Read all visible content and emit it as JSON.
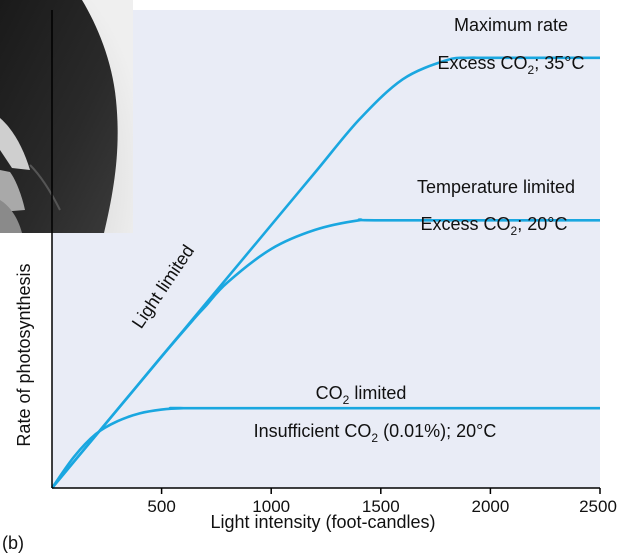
{
  "figure": {
    "panel_label": "(b)",
    "photo": "portrait-photo"
  },
  "colors": {
    "plot_background": "#e9ecf6",
    "curve": "#1aa7e0",
    "axis": "#000000"
  },
  "chart_data": {
    "type": "line",
    "xlabel": "Light intensity (foot-candles)",
    "ylabel": "Rate of photosynthesis",
    "xlim": [
      0,
      2500
    ],
    "x_ticks": [
      "500",
      "1000",
      "1500",
      "2000",
      "2500"
    ],
    "y_ticks": [],
    "grid": false,
    "legend": "none",
    "series": [
      {
        "x": [
          0,
          100,
          300,
          500,
          600,
          700,
          1000,
          1200,
          1400,
          1600,
          1800,
          1900,
          2000,
          2500
        ],
        "y": [
          0,
          0.055,
          0.165,
          0.275,
          0.33,
          0.385,
          0.55,
          0.66,
          0.77,
          0.855,
          0.895,
          0.9,
          0.9,
          0.9
        ]
      },
      {
        "x": [
          0,
          100,
          300,
          500,
          650,
          700,
          800,
          1000,
          1200,
          1400,
          1500,
          2500
        ],
        "y": [
          0,
          0.055,
          0.165,
          0.275,
          0.355,
          0.38,
          0.43,
          0.5,
          0.54,
          0.56,
          0.56,
          0.56
        ]
      },
      {
        "x": [
          0,
          100,
          200,
          300,
          400,
          500,
          600,
          700,
          2500
        ],
        "y": [
          0,
          0.065,
          0.113,
          0.14,
          0.156,
          0.164,
          0.167,
          0.167,
          0.167
        ]
      }
    ],
    "annotations": {
      "light_limited": "Light limited",
      "maximum_rate": "Maximum rate",
      "max_condition": {
        "pre": "Excess CO",
        "sub": "2",
        "post": "; 35°C"
      },
      "temperature_limited": "Temperature limited",
      "temp_condition": {
        "pre": "Excess CO",
        "sub": "2",
        "post": "; 20°C"
      },
      "co2_limited": {
        "pre": "CO",
        "sub": "2",
        "post": " limited"
      },
      "co2_condition": {
        "pre": "Insufficient CO",
        "sub": "2",
        "post": " (0.01%); 20°C"
      }
    }
  }
}
